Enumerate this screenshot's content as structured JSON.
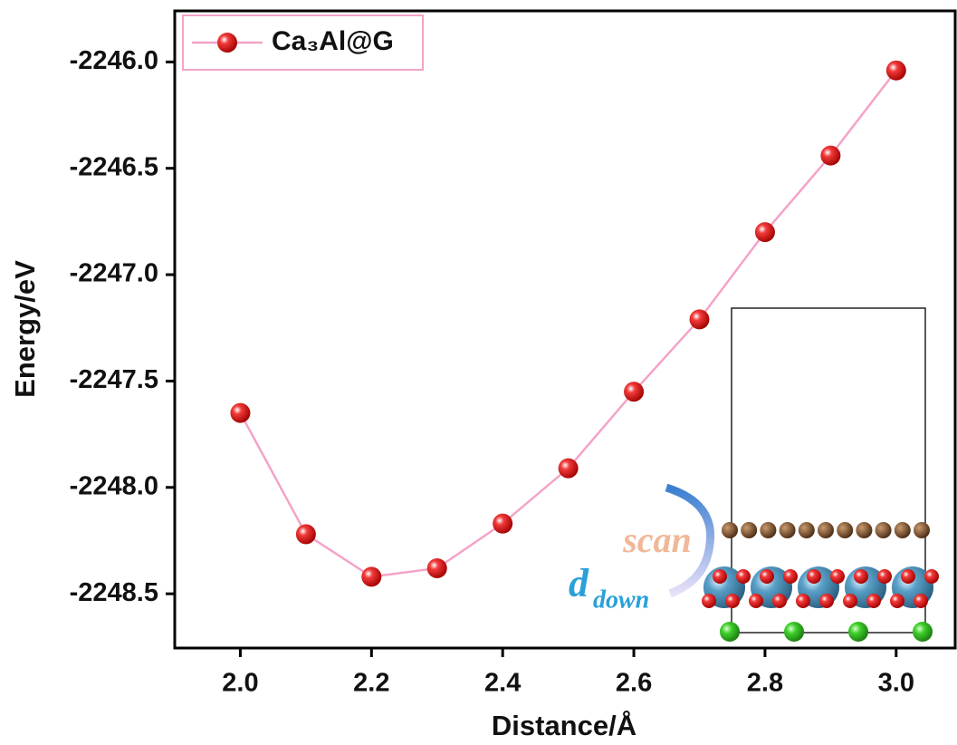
{
  "chart_data": {
    "type": "line",
    "x_label": "Distance/Å",
    "y_label": "Energy/eV",
    "x": [
      2.0,
      2.1,
      2.2,
      2.3,
      2.4,
      2.5,
      2.6,
      2.7,
      2.8,
      2.9,
      3.0
    ],
    "series": [
      {
        "name": "Ca₃Al@G",
        "color": "#f4a3c8",
        "marker_color": "#e8101a",
        "values": [
          -2247.65,
          -2248.22,
          -2248.42,
          -2248.38,
          -2248.17,
          -2247.91,
          -2247.55,
          -2247.21,
          -2246.8,
          -2246.44,
          -2246.04
        ]
      }
    ],
    "xlim": [
      1.9,
      3.09
    ],
    "ylim": [
      -2248.755,
      -2245.76
    ],
    "xticks": [
      {
        "value": 2.0,
        "label": "2.0"
      },
      2.2,
      2.4,
      2.6,
      2.8,
      {
        "value": 3.0,
        "label": "3.0"
      }
    ],
    "yticks": [
      {
        "value": -2246.0,
        "label": "-2246.0"
      },
      -2246.5,
      {
        "value": -2247.0,
        "label": "-2247.0"
      },
      -2247.5,
      {
        "value": -2248.0,
        "label": "-2248.0"
      },
      -2248.5
    ],
    "legend": "upper left",
    "annotations": [
      "scan",
      "d",
      "down"
    ]
  }
}
